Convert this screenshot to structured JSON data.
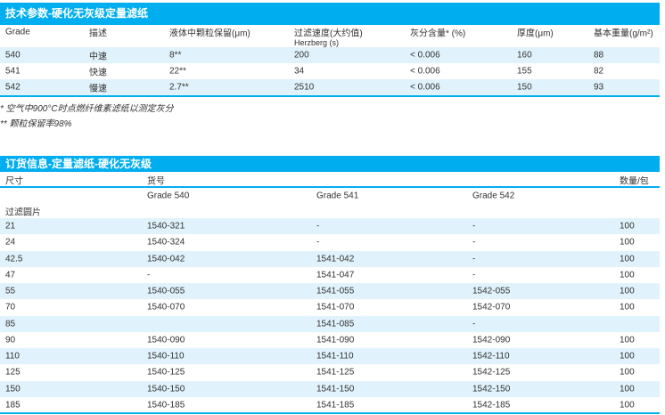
{
  "spec": {
    "title": "技术参数-硬化无灰级定量滤纸",
    "headers": [
      "Grade",
      "描述",
      "液体中颗粒保留(μm)",
      "过滤速度(大约值)",
      "灰分含量* (%)",
      "厚度(μm)",
      "基本重量(g/m²)"
    ],
    "header_sub": "Herzberg (s)",
    "rows": [
      [
        "540",
        "中速",
        "8**",
        "200",
        "< 0.006",
        "160",
        "88"
      ],
      [
        "541",
        "快速",
        "22**",
        "34",
        "< 0.006",
        "155",
        "82"
      ],
      [
        "542",
        "慢速",
        "2.7**",
        "2510",
        "< 0.006",
        "150",
        "93"
      ]
    ],
    "footnotes": [
      "* 空气中900°C时点燃纤维素滤纸以测定灰分",
      "** 颗粒保留率98%"
    ]
  },
  "order": {
    "title": "订货信息-定量滤纸-硬化无灰级",
    "headers": [
      "尺寸",
      "货号",
      "数量/包"
    ],
    "grades": [
      "Grade 540",
      "Grade 541",
      "Grade 542"
    ],
    "section": "过滤圆片",
    "rows": [
      [
        "21",
        "1540-321",
        "-",
        "-",
        "100"
      ],
      [
        "24",
        "1540-324",
        "-",
        "-",
        "100"
      ],
      [
        "42.5",
        "1540-042",
        "1541-042",
        "-",
        "100"
      ],
      [
        "47",
        "-",
        "1541-047",
        "-",
        "100"
      ],
      [
        "55",
        "1540-055",
        "1541-055",
        "1542-055",
        "100"
      ],
      [
        "70",
        "1540-070",
        "1541-070",
        "1542-070",
        "100"
      ],
      [
        "85",
        "",
        "1541-085",
        "-",
        ""
      ],
      [
        "90",
        "1540-090",
        "1541-090",
        "1542-090",
        "100"
      ],
      [
        "110",
        "1540-110",
        "1541-110",
        "1542-110",
        "100"
      ],
      [
        "125",
        "1540-125",
        "1541-125",
        "1542-125",
        "100"
      ],
      [
        "150",
        "1540-150",
        "1541-150",
        "1542-150",
        "100"
      ],
      [
        "185",
        "1540-185",
        "1541-185",
        "1542-185",
        "100"
      ]
    ]
  }
}
